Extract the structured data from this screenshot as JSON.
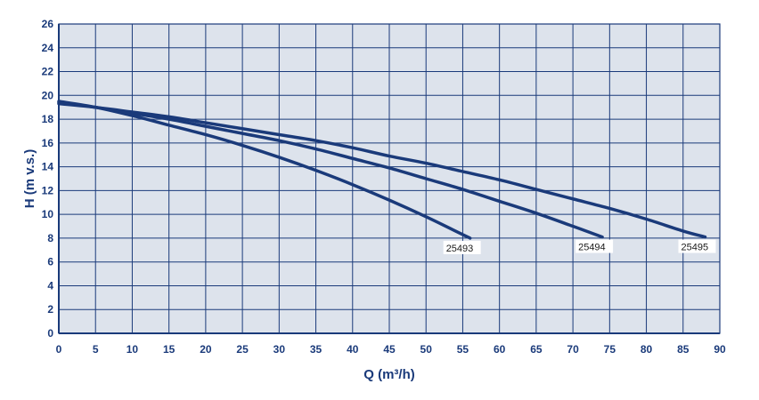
{
  "chart_data": {
    "type": "line",
    "title": "",
    "xlabel": "Q (m³/h)",
    "ylabel": "H (m v.s.)",
    "xlim": [
      0,
      90
    ],
    "ylim": [
      0,
      26
    ],
    "xticks": [
      0,
      5,
      10,
      15,
      20,
      25,
      30,
      35,
      40,
      45,
      50,
      55,
      60,
      65,
      70,
      75,
      80,
      85,
      90
    ],
    "yticks": [
      0,
      2,
      4,
      6,
      8,
      10,
      12,
      14,
      16,
      18,
      20,
      22,
      24,
      26
    ],
    "grid": true,
    "colors": {
      "plot_background": "#dde3ec",
      "grid": "#1a3a7a",
      "line": "#1a3a7a",
      "text": "#1a3a7a"
    },
    "series": [
      {
        "name": "25493",
        "x": [
          0,
          5,
          10,
          15,
          20,
          25,
          30,
          35,
          40,
          45,
          50,
          55,
          56
        ],
        "y": [
          19.5,
          19.0,
          18.3,
          17.5,
          16.7,
          15.8,
          14.8,
          13.7,
          12.5,
          11.2,
          9.8,
          8.3,
          8.0
        ]
      },
      {
        "name": "25494",
        "x": [
          0,
          5,
          10,
          15,
          20,
          25,
          30,
          35,
          40,
          45,
          50,
          55,
          60,
          65,
          70,
          74
        ],
        "y": [
          19.4,
          19.0,
          18.5,
          18.0,
          17.4,
          16.8,
          16.2,
          15.5,
          14.7,
          13.9,
          13.0,
          12.1,
          11.1,
          10.1,
          9.0,
          8.1
        ]
      },
      {
        "name": "25495",
        "x": [
          0,
          5,
          10,
          15,
          20,
          25,
          30,
          35,
          40,
          45,
          50,
          55,
          60,
          65,
          70,
          75,
          80,
          85,
          88
        ],
        "y": [
          19.3,
          19.0,
          18.6,
          18.2,
          17.7,
          17.2,
          16.7,
          16.2,
          15.6,
          14.9,
          14.3,
          13.6,
          12.9,
          12.1,
          11.3,
          10.5,
          9.6,
          8.6,
          8.1
        ]
      }
    ]
  }
}
